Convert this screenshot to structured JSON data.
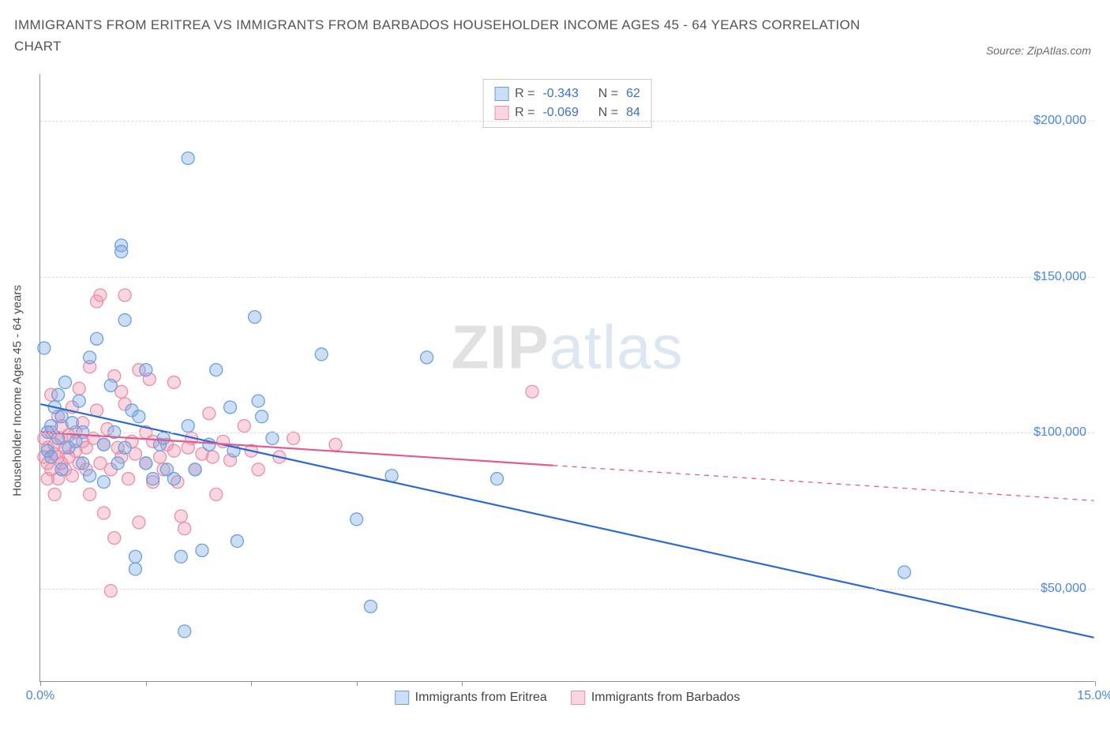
{
  "header": {
    "title": "IMMIGRANTS FROM ERITREA VS IMMIGRANTS FROM BARBADOS HOUSEHOLDER INCOME AGES 45 - 64 YEARS CORRELATION CHART",
    "source": "Source: ZipAtlas.com"
  },
  "chart": {
    "type": "scatter",
    "y_axis_label": "Householder Income Ages 45 - 64 years",
    "x_range": [
      0,
      15
    ],
    "y_range": [
      20000,
      215000
    ],
    "x_ticks": [
      0,
      1.5,
      3,
      4.5,
      6,
      15
    ],
    "x_tick_labels": {
      "0": "0.0%",
      "15": "15.0%"
    },
    "y_grid": [
      50000,
      100000,
      150000,
      200000
    ],
    "y_tick_labels": {
      "50000": "$50,000",
      "100000": "$100,000",
      "150000": "$150,000",
      "200000": "$200,000"
    },
    "colors": {
      "series1_fill": "rgba(110,160,230,0.35)",
      "series1_stroke": "#6aa0e0",
      "series1_line": "#2d6ad0",
      "series2_fill": "rgba(240,140,165,0.35)",
      "series2_stroke": "#e98fa8",
      "series2_line": "#e55a8a",
      "grid": "#dcdcdc",
      "axis": "#909090",
      "tick_text": "#4a86e8",
      "text": "#545454"
    },
    "marker_radius": 8,
    "marker_stroke_width": 1.3,
    "line_width": 2.2,
    "series": [
      {
        "name": "Immigrants from Eritrea",
        "R": "-0.343",
        "N": "62",
        "regression": {
          "x1": 0,
          "y1": 109000,
          "x2": 15,
          "y2": 34000,
          "dashed_from": null
        },
        "points": [
          [
            0.05,
            127000
          ],
          [
            0.1,
            100000
          ],
          [
            0.1,
            94000
          ],
          [
            0.15,
            102000
          ],
          [
            0.15,
            92000
          ],
          [
            0.2,
            108000
          ],
          [
            0.25,
            98000
          ],
          [
            0.25,
            112000
          ],
          [
            0.3,
            105000
          ],
          [
            0.3,
            88000
          ],
          [
            0.35,
            116000
          ],
          [
            0.4,
            95000
          ],
          [
            0.45,
            103000
          ],
          [
            0.5,
            97000
          ],
          [
            0.55,
            110000
          ],
          [
            0.6,
            100000
          ],
          [
            0.6,
            90000
          ],
          [
            0.7,
            124000
          ],
          [
            0.7,
            86000
          ],
          [
            0.8,
            130000
          ],
          [
            0.9,
            96000
          ],
          [
            0.9,
            84000
          ],
          [
            1.0,
            115000
          ],
          [
            1.05,
            100000
          ],
          [
            1.1,
            90000
          ],
          [
            1.15,
            160000
          ],
          [
            1.15,
            158000
          ],
          [
            1.2,
            136000
          ],
          [
            1.2,
            95000
          ],
          [
            1.3,
            107000
          ],
          [
            1.35,
            60000
          ],
          [
            1.35,
            56000
          ],
          [
            1.4,
            105000
          ],
          [
            1.5,
            120000
          ],
          [
            1.5,
            90000
          ],
          [
            1.6,
            85000
          ],
          [
            1.7,
            96000
          ],
          [
            1.75,
            98000
          ],
          [
            1.8,
            88000
          ],
          [
            1.9,
            85000
          ],
          [
            2.0,
            60000
          ],
          [
            2.05,
            36000
          ],
          [
            2.1,
            188000
          ],
          [
            2.1,
            102000
          ],
          [
            2.2,
            88000
          ],
          [
            2.3,
            62000
          ],
          [
            2.4,
            96000
          ],
          [
            2.5,
            120000
          ],
          [
            2.7,
            108000
          ],
          [
            2.75,
            94000
          ],
          [
            2.8,
            65000
          ],
          [
            3.05,
            137000
          ],
          [
            3.1,
            110000
          ],
          [
            3.15,
            105000
          ],
          [
            3.3,
            98000
          ],
          [
            4.0,
            125000
          ],
          [
            4.5,
            72000
          ],
          [
            4.7,
            44000
          ],
          [
            5.0,
            86000
          ],
          [
            5.5,
            124000
          ],
          [
            6.5,
            85000
          ],
          [
            12.3,
            55000
          ]
        ]
      },
      {
        "name": "Immigrants from Barbados",
        "R": "-0.069",
        "N": "84",
        "regression": {
          "x1": 0,
          "y1": 100000,
          "x2": 15,
          "y2": 78000,
          "dashed_from": 7.3
        },
        "points": [
          [
            0.05,
            92000
          ],
          [
            0.05,
            98000
          ],
          [
            0.1,
            95000
          ],
          [
            0.1,
            90000
          ],
          [
            0.1,
            85000
          ],
          [
            0.15,
            100000
          ],
          [
            0.15,
            88000
          ],
          [
            0.15,
            112000
          ],
          [
            0.2,
            96000
          ],
          [
            0.2,
            93000
          ],
          [
            0.2,
            80000
          ],
          [
            0.25,
            105000
          ],
          [
            0.25,
            92000
          ],
          [
            0.25,
            85000
          ],
          [
            0.3,
            98000
          ],
          [
            0.3,
            90000
          ],
          [
            0.3,
            102000
          ],
          [
            0.35,
            95000
          ],
          [
            0.35,
            88000
          ],
          [
            0.4,
            99000
          ],
          [
            0.4,
            92000
          ],
          [
            0.45,
            108000
          ],
          [
            0.45,
            86000
          ],
          [
            0.5,
            94000
          ],
          [
            0.5,
            100000
          ],
          [
            0.55,
            90000
          ],
          [
            0.55,
            114000
          ],
          [
            0.6,
            97000
          ],
          [
            0.6,
            103000
          ],
          [
            0.65,
            88000
          ],
          [
            0.65,
            95000
          ],
          [
            0.7,
            121000
          ],
          [
            0.7,
            80000
          ],
          [
            0.75,
            98000
          ],
          [
            0.8,
            107000
          ],
          [
            0.8,
            142000
          ],
          [
            0.85,
            90000
          ],
          [
            0.85,
            144000
          ],
          [
            0.9,
            96000
          ],
          [
            0.9,
            74000
          ],
          [
            0.95,
            101000
          ],
          [
            1.0,
            88000
          ],
          [
            1.0,
            49000
          ],
          [
            1.05,
            118000
          ],
          [
            1.05,
            66000
          ],
          [
            1.1,
            95000
          ],
          [
            1.15,
            92000
          ],
          [
            1.15,
            113000
          ],
          [
            1.2,
            109000
          ],
          [
            1.2,
            144000
          ],
          [
            1.25,
            85000
          ],
          [
            1.3,
            97000
          ],
          [
            1.35,
            93000
          ],
          [
            1.4,
            120000
          ],
          [
            1.4,
            71000
          ],
          [
            1.5,
            100000
          ],
          [
            1.5,
            90000
          ],
          [
            1.55,
            117000
          ],
          [
            1.6,
            84000
          ],
          [
            1.6,
            97000
          ],
          [
            1.7,
            92000
          ],
          [
            1.75,
            88000
          ],
          [
            1.8,
            96000
          ],
          [
            1.9,
            116000
          ],
          [
            1.9,
            94000
          ],
          [
            1.95,
            84000
          ],
          [
            2.0,
            73000
          ],
          [
            2.05,
            69000
          ],
          [
            2.1,
            95000
          ],
          [
            2.15,
            98000
          ],
          [
            2.2,
            88000
          ],
          [
            2.3,
            93000
          ],
          [
            2.4,
            106000
          ],
          [
            2.45,
            92000
          ],
          [
            2.5,
            80000
          ],
          [
            2.6,
            97000
          ],
          [
            2.7,
            91000
          ],
          [
            2.9,
            102000
          ],
          [
            3.0,
            94000
          ],
          [
            3.1,
            88000
          ],
          [
            3.4,
            92000
          ],
          [
            3.6,
            98000
          ],
          [
            4.2,
            96000
          ],
          [
            7.0,
            113000
          ]
        ]
      }
    ],
    "legend_box": {
      "r_label": "R =",
      "n_label": "N ="
    },
    "bottom_legend": [
      "Immigrants from Eritrea",
      "Immigrants from Barbados"
    ],
    "watermark": {
      "part1": "ZIP",
      "part2": "atlas"
    }
  }
}
